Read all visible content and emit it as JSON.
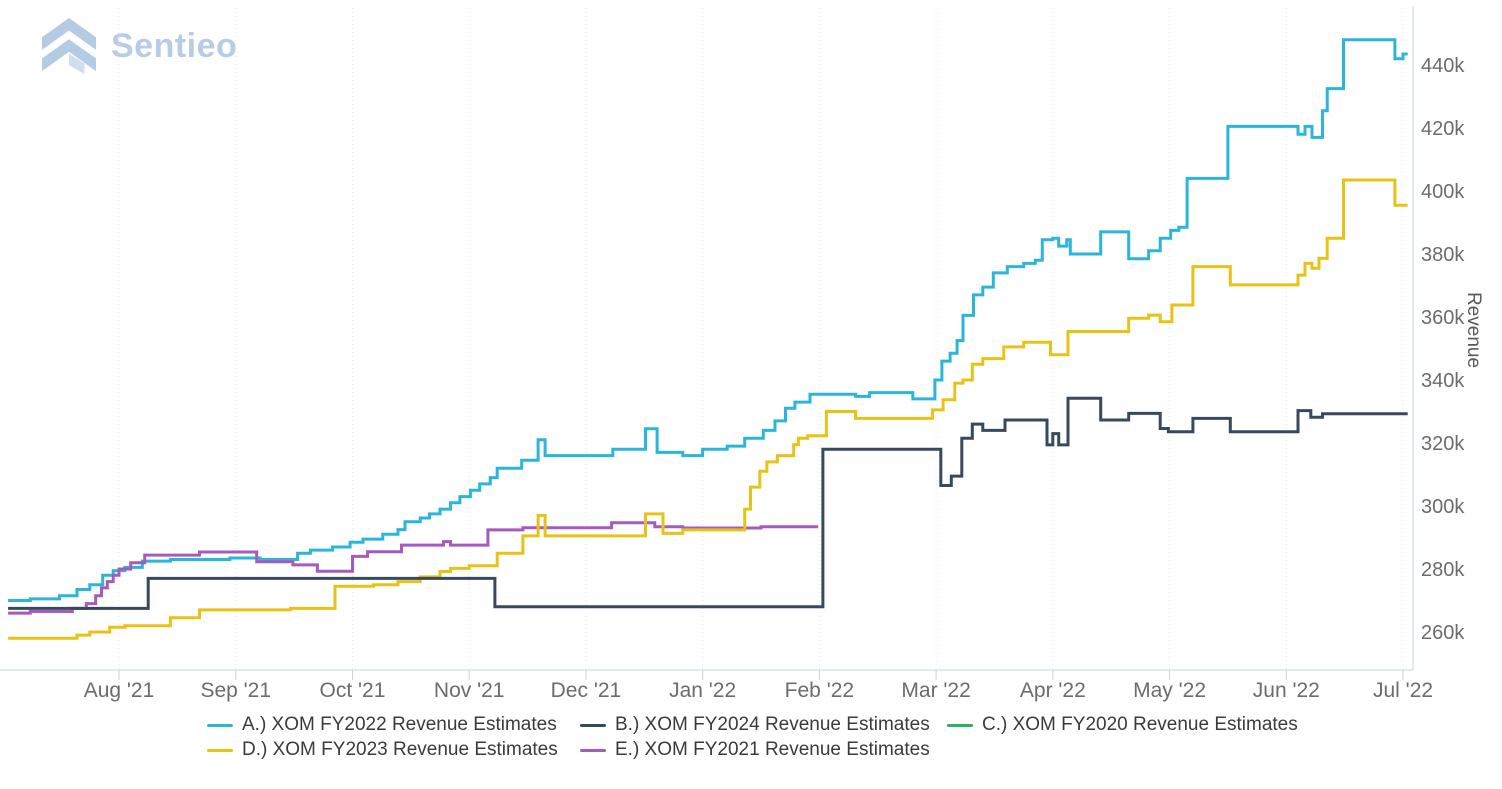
{
  "brand": {
    "name": "Sentieo"
  },
  "chart_data": {
    "type": "line",
    "subtype": "step-after",
    "title": "",
    "xlabel": "",
    "ylabel": "Revenue",
    "unit": "USD millions (axis shown in k)",
    "x_unit": "months, Aug 2021 = 1 through Jul 2022 = 12",
    "xlim": [
      0.0,
      12.1
    ],
    "ylim": [
      255,
      452
    ],
    "grid": "vertical dotted monthly gridlines only",
    "legend_position": "bottom",
    "x_ticks": [
      "Aug '21",
      "Sep '21",
      "Oct '21",
      "Nov '21",
      "Dec '21",
      "Jan '22",
      "Feb '22",
      "Mar '22",
      "Apr '22",
      "May '22",
      "Jun '22",
      "Jul '22"
    ],
    "y_ticks": [
      "440k",
      "420k",
      "400k",
      "380k",
      "360k",
      "340k",
      "320k",
      "300k",
      "280k",
      "260k"
    ],
    "y_tick_values": [
      440,
      420,
      400,
      380,
      360,
      340,
      320,
      300,
      280,
      260
    ],
    "series": [
      {
        "id": "A",
        "name": "A.) XOM FY2022 Revenue Estimates",
        "color": "#2bb6d9",
        "end": 12.04,
        "points": [
          [
            0.05,
            270
          ],
          [
            0.24,
            270.5
          ],
          [
            0.49,
            271.5
          ],
          [
            0.64,
            273.5
          ],
          [
            0.75,
            275
          ],
          [
            0.86,
            278
          ],
          [
            0.95,
            279.5
          ],
          [
            1.05,
            280.5
          ],
          [
            1.2,
            282.5
          ],
          [
            1.44,
            283
          ],
          [
            1.95,
            283.5
          ],
          [
            2.21,
            283
          ],
          [
            2.53,
            285
          ],
          [
            2.64,
            286
          ],
          [
            2.83,
            287
          ],
          [
            2.98,
            288.5
          ],
          [
            3.09,
            289.5
          ],
          [
            3.26,
            291
          ],
          [
            3.39,
            292.5
          ],
          [
            3.45,
            295
          ],
          [
            3.58,
            296.2
          ],
          [
            3.66,
            297.5
          ],
          [
            3.75,
            299
          ],
          [
            3.84,
            301
          ],
          [
            3.92,
            303
          ],
          [
            4.01,
            305
          ],
          [
            4.09,
            307
          ],
          [
            4.18,
            309
          ],
          [
            4.24,
            312
          ],
          [
            4.45,
            314.5
          ],
          [
            4.59,
            321
          ],
          [
            4.65,
            316
          ],
          [
            5.23,
            318
          ],
          [
            5.51,
            324.5
          ],
          [
            5.61,
            317
          ],
          [
            5.83,
            316
          ],
          [
            6.0,
            318
          ],
          [
            6.21,
            319
          ],
          [
            6.36,
            321.5
          ],
          [
            6.52,
            324
          ],
          [
            6.62,
            327
          ],
          [
            6.71,
            331
          ],
          [
            6.79,
            333
          ],
          [
            6.92,
            335.5
          ],
          [
            7.31,
            334.8
          ],
          [
            7.43,
            336
          ],
          [
            7.8,
            334
          ],
          [
            7.99,
            340
          ],
          [
            8.05,
            346
          ],
          [
            8.12,
            348.5
          ],
          [
            8.18,
            352.5
          ],
          [
            8.23,
            360.5
          ],
          [
            8.32,
            367
          ],
          [
            8.4,
            369.5
          ],
          [
            8.49,
            374
          ],
          [
            8.61,
            376
          ],
          [
            8.75,
            377
          ],
          [
            8.85,
            378
          ],
          [
            8.91,
            384.5
          ],
          [
            9.0,
            385
          ],
          [
            9.05,
            382.5
          ],
          [
            9.12,
            384.5
          ],
          [
            9.15,
            380
          ],
          [
            9.41,
            387
          ],
          [
            9.65,
            378.5
          ],
          [
            9.82,
            381
          ],
          [
            9.92,
            385
          ],
          [
            10.01,
            387.5
          ],
          [
            10.08,
            388.5
          ],
          [
            10.15,
            404
          ],
          [
            10.5,
            420.5
          ],
          [
            11.1,
            418
          ],
          [
            11.16,
            420.5
          ],
          [
            11.22,
            417
          ],
          [
            11.31,
            425.5
          ],
          [
            11.35,
            432.5
          ],
          [
            11.49,
            448
          ],
          [
            11.93,
            442
          ],
          [
            12.0,
            443.5
          ]
        ]
      },
      {
        "id": "B",
        "name": "B.) XOM FY2024 Revenue Estimates",
        "color": "#36495d",
        "end": 12.04,
        "points": [
          [
            0.05,
            267.5
          ],
          [
            1.25,
            277
          ],
          [
            4.22,
            268
          ],
          [
            7.03,
            318
          ],
          [
            8.04,
            306.5
          ],
          [
            8.13,
            309.5
          ],
          [
            8.22,
            321.5
          ],
          [
            8.31,
            326
          ],
          [
            8.4,
            324
          ],
          [
            8.59,
            327.3
          ],
          [
            8.95,
            319.4
          ],
          [
            9.0,
            323
          ],
          [
            9.05,
            319.4
          ],
          [
            9.13,
            334.2
          ],
          [
            9.41,
            327.3
          ],
          [
            9.65,
            329.4
          ],
          [
            9.92,
            324.6
          ],
          [
            9.99,
            323.6
          ],
          [
            10.2,
            327.8
          ],
          [
            10.52,
            323.6
          ],
          [
            11.1,
            330.3
          ],
          [
            11.21,
            328.2
          ],
          [
            11.31,
            329.3
          ]
        ]
      },
      {
        "id": "C",
        "name": "C.) XOM FY2020 Revenue Estimates",
        "color": "#2fad61",
        "end": null,
        "points": [],
        "note": "present in legend only; no line visible within plotted axis range"
      },
      {
        "id": "D",
        "name": "D.) XOM FY2023 Revenue Estimates",
        "color": "#e9c216",
        "end": 12.04,
        "points": [
          [
            0.05,
            258
          ],
          [
            0.64,
            259
          ],
          [
            0.75,
            260
          ],
          [
            0.92,
            261.5
          ],
          [
            1.05,
            262
          ],
          [
            1.44,
            264.5
          ],
          [
            1.69,
            267
          ],
          [
            2.47,
            267.5
          ],
          [
            2.85,
            274.5
          ],
          [
            3.18,
            275
          ],
          [
            3.39,
            276
          ],
          [
            3.58,
            277.5
          ],
          [
            3.75,
            279.2
          ],
          [
            3.84,
            280.2
          ],
          [
            4.0,
            281
          ],
          [
            4.24,
            285
          ],
          [
            4.46,
            290.5
          ],
          [
            4.59,
            297
          ],
          [
            4.65,
            290.5
          ],
          [
            5.51,
            297.5
          ],
          [
            5.66,
            291.3
          ],
          [
            5.83,
            292.4
          ],
          [
            6.36,
            299
          ],
          [
            6.41,
            306
          ],
          [
            6.49,
            311
          ],
          [
            6.55,
            314
          ],
          [
            6.64,
            316
          ],
          [
            6.78,
            319.5
          ],
          [
            6.82,
            321.5
          ],
          [
            6.9,
            322.3
          ],
          [
            7.06,
            330
          ],
          [
            7.31,
            327.8
          ],
          [
            7.97,
            330.5
          ],
          [
            8.06,
            333.7
          ],
          [
            8.16,
            339
          ],
          [
            8.23,
            340
          ],
          [
            8.31,
            345
          ],
          [
            8.4,
            346.8
          ],
          [
            8.58,
            350.5
          ],
          [
            8.75,
            352
          ],
          [
            8.98,
            348
          ],
          [
            9.13,
            355.4
          ],
          [
            9.65,
            359.6
          ],
          [
            9.82,
            360.6
          ],
          [
            9.92,
            358.5
          ],
          [
            10.02,
            363.8
          ],
          [
            10.2,
            376
          ],
          [
            10.52,
            370.2
          ],
          [
            11.1,
            373.3
          ],
          [
            11.16,
            377
          ],
          [
            11.22,
            375.5
          ],
          [
            11.28,
            378.6
          ],
          [
            11.35,
            385
          ],
          [
            11.49,
            403.5
          ],
          [
            11.93,
            395.5
          ]
        ]
      },
      {
        "id": "E",
        "name": "E.) XOM FY2021 Revenue Estimates",
        "color": "#a45bbd",
        "end": 6.99,
        "points": [
          [
            0.05,
            266
          ],
          [
            0.24,
            266.5
          ],
          [
            0.6,
            267.5
          ],
          [
            0.72,
            269
          ],
          [
            0.8,
            271.5
          ],
          [
            0.85,
            274
          ],
          [
            0.9,
            276
          ],
          [
            0.95,
            278
          ],
          [
            1.0,
            280
          ],
          [
            1.1,
            282
          ],
          [
            1.22,
            284.4
          ],
          [
            1.69,
            285.4
          ],
          [
            2.18,
            282.3
          ],
          [
            2.49,
            281.3
          ],
          [
            2.7,
            279.3
          ],
          [
            3.0,
            284
          ],
          [
            3.13,
            285.5
          ],
          [
            3.42,
            287.6
          ],
          [
            3.78,
            288.7
          ],
          [
            3.84,
            287.6
          ],
          [
            4.16,
            292.4
          ],
          [
            4.46,
            293.1
          ],
          [
            5.22,
            294.7
          ],
          [
            5.59,
            293.4
          ],
          [
            5.83,
            293
          ],
          [
            6.5,
            293.4
          ]
        ]
      }
    ],
    "legend": {
      "rows": [
        [
          "A",
          "B",
          "C"
        ],
        [
          "D",
          "E"
        ]
      ]
    },
    "colors": {
      "axis_line": "#c6d5e1",
      "gridline": "#e4e8ee",
      "tick_label": "#6b6c6e",
      "axis_title": "#58595b",
      "legend_text": "#3a3b3c",
      "logo": "#b7cde6"
    }
  }
}
